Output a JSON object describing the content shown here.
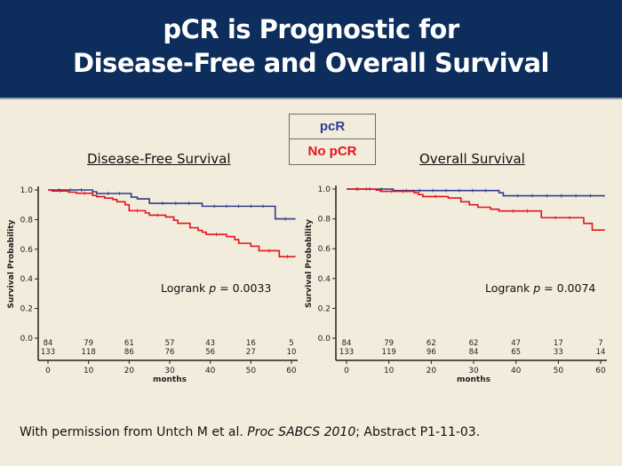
{
  "slide": {
    "title_line1": "pCR is Prognostic for",
    "title_line2": "Disease-Free and Overall Survival",
    "legend": [
      {
        "label": "pcR",
        "color": "#2e3d8f"
      },
      {
        "label": "No pCR",
        "color": "#e3141b"
      }
    ],
    "footer": {
      "prefix": "With permission from Untch M et al. ",
      "italic": "Proc SABCS 2010",
      "suffix": "; Abstract P1-11-03."
    }
  },
  "chart_data": [
    {
      "type": "line",
      "subtype": "kaplan-meier-step",
      "title": "Disease-Free Survival",
      "xlabel": "months",
      "ylabel": "Survival Probability",
      "xlim": [
        0,
        60
      ],
      "ylim": [
        0,
        1.0
      ],
      "xticks": [
        "0",
        "10",
        "20",
        "30",
        "40",
        "50",
        "60"
      ],
      "yticks": [
        "0.0",
        "0.2",
        "0.4",
        "0.6",
        "0.8",
        "1.0"
      ],
      "annotation": {
        "prefix": "Logrank ",
        "p": "p",
        "value": " = 0.0033"
      },
      "at_risk": [
        {
          "name": "pcR",
          "values": [
            "84",
            "79",
            "61",
            "57",
            "43",
            "16",
            "5"
          ]
        },
        {
          "name": "No pCR",
          "values": [
            "133",
            "118",
            "86",
            "76",
            "56",
            "27",
            "10"
          ]
        }
      ],
      "series": [
        {
          "name": "pcR",
          "color": "#2e3d8f",
          "steps": [
            [
              0,
              1.0
            ],
            [
              11,
              0.988
            ],
            [
              12,
              0.976
            ],
            [
              20.5,
              0.952
            ],
            [
              22,
              0.94
            ],
            [
              25,
              0.91
            ],
            [
              38,
              0.89
            ],
            [
              56,
              0.805
            ],
            [
              61,
              0.805
            ]
          ]
        },
        {
          "name": "No pCR",
          "color": "#e3141b",
          "steps": [
            [
              0,
              1.0
            ],
            [
              1,
              0.993
            ],
            [
              5,
              0.985
            ],
            [
              7,
              0.978
            ],
            [
              11,
              0.963
            ],
            [
              12,
              0.955
            ],
            [
              14,
              0.945
            ],
            [
              16,
              0.935
            ],
            [
              17,
              0.92
            ],
            [
              19,
              0.9
            ],
            [
              20,
              0.86
            ],
            [
              24,
              0.845
            ],
            [
              25,
              0.83
            ],
            [
              29,
              0.818
            ],
            [
              31,
              0.795
            ],
            [
              32,
              0.775
            ],
            [
              35,
              0.745
            ],
            [
              37,
              0.727
            ],
            [
              38,
              0.715
            ],
            [
              39,
              0.7
            ],
            [
              44,
              0.685
            ],
            [
              46,
              0.665
            ],
            [
              47,
              0.64
            ],
            [
              50,
              0.62
            ],
            [
              52,
              0.59
            ],
            [
              57,
              0.55
            ],
            [
              61,
              0.55
            ]
          ]
        }
      ]
    },
    {
      "type": "line",
      "subtype": "kaplan-meier-step",
      "title": "Overall Survival",
      "xlabel": "months",
      "ylabel": "Survival Probability",
      "xlim": [
        0,
        60
      ],
      "ylim": [
        0,
        1.0
      ],
      "xticks": [
        "0",
        "10",
        "20",
        "30",
        "40",
        "50",
        "60"
      ],
      "yticks": [
        "0.0",
        "0.2",
        "0.4",
        "0.6",
        "0.8",
        "1.0"
      ],
      "annotation": {
        "prefix": "Logrank ",
        "p": "p",
        "value": " = 0.0074"
      },
      "at_risk": [
        {
          "name": "pcR",
          "values": [
            "84",
            "79",
            "62",
            "62",
            "47",
            "17",
            "7"
          ]
        },
        {
          "name": "No pCR",
          "values": [
            "133",
            "119",
            "96",
            "84",
            "65",
            "33",
            "14"
          ]
        }
      ],
      "series": [
        {
          "name": "pcR",
          "color": "#2e3d8f",
          "steps": [
            [
              0,
              1.0
            ],
            [
              11,
              0.99
            ],
            [
              36,
              0.975
            ],
            [
              37,
              0.955
            ],
            [
              61,
              0.955
            ]
          ]
        },
        {
          "name": "No pCR",
          "color": "#e3141b",
          "steps": [
            [
              0,
              1.0
            ],
            [
              7,
              0.993
            ],
            [
              8,
              0.985
            ],
            [
              16,
              0.975
            ],
            [
              17,
              0.963
            ],
            [
              18,
              0.95
            ],
            [
              24,
              0.94
            ],
            [
              27,
              0.915
            ],
            [
              29,
              0.895
            ],
            [
              31,
              0.878
            ],
            [
              34,
              0.865
            ],
            [
              36,
              0.853
            ],
            [
              46,
              0.808
            ],
            [
              56,
              0.77
            ],
            [
              58,
              0.725
            ],
            [
              61,
              0.725
            ]
          ]
        }
      ]
    }
  ]
}
